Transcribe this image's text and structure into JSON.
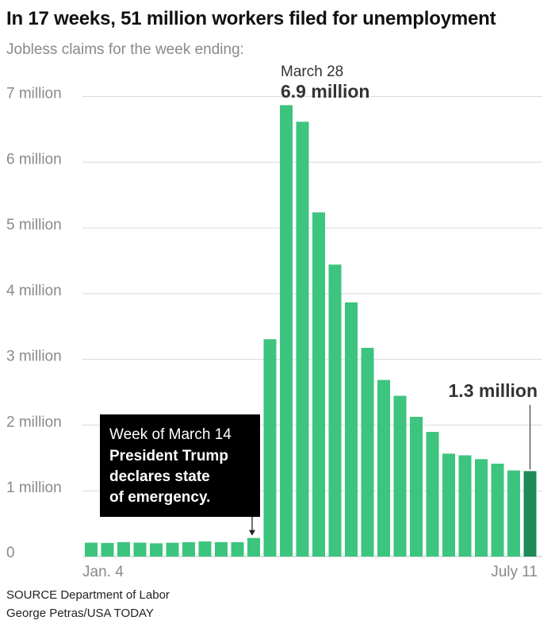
{
  "title": "In 17 weeks, 51 million workers filed for unemployment",
  "subtitle": "Jobless claims for the week ending:",
  "source_line": "SOURCE Department of Labor",
  "credit_line": "George Petras/USA TODAY",
  "colors": {
    "bar": "#3dc47e",
    "highlight_bar": "#1f8a57",
    "gridline": "#d9d9d9",
    "note_box": "#000000"
  },
  "chart_data": {
    "type": "bar",
    "title": "In 17 weeks, 51 million workers filed for unemployment",
    "subtitle": "Jobless claims for the week ending:",
    "ylim": [
      0,
      7000000
    ],
    "grid": true,
    "y_ticks": [
      {
        "value": 0,
        "label": "0"
      },
      {
        "value": 1000000,
        "label": "1 million"
      },
      {
        "value": 2000000,
        "label": "2 million"
      },
      {
        "value": 3000000,
        "label": "3 million"
      },
      {
        "value": 4000000,
        "label": "4 million"
      },
      {
        "value": 5000000,
        "label": "5 million"
      },
      {
        "value": 6000000,
        "label": "6 million"
      },
      {
        "value": 7000000,
        "label": "7 million"
      }
    ],
    "x_tick_labels": {
      "first": "Jan. 4",
      "last": "July 11"
    },
    "values": [
      211000,
      207000,
      220000,
      212000,
      201000,
      210000,
      219000,
      230000,
      220000,
      219000,
      282000,
      3307000,
      6867000,
      6615000,
      5237000,
      4442000,
      3867000,
      3176000,
      2687000,
      2446000,
      2126000,
      1897000,
      1566000,
      1540000,
      1482000,
      1413000,
      1310000,
      1300000
    ],
    "highlight_index": 27,
    "annotations": {
      "peak": {
        "index": 12,
        "date": "March 28",
        "value_label": "6.9 million"
      },
      "last": {
        "index": 27,
        "value_label": "1.3 million"
      },
      "note": {
        "index": 10,
        "line1": "Week of March 14",
        "line2": "President Trump",
        "line3": "declares state",
        "line4": "of emergency."
      }
    }
  }
}
